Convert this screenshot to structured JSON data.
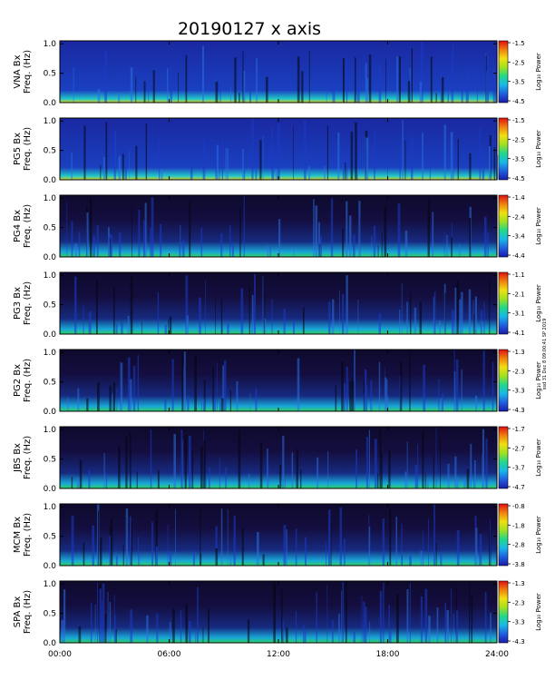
{
  "title": "20190127  x axis",
  "side_note": "ssd 31 Dec 8 09:00:41 SP 2019",
  "colors": {
    "background_low": "#0a0a1c",
    "colormap": [
      "#1a1aa8",
      "#1f5fe0",
      "#18b8e8",
      "#20d888",
      "#a0e020",
      "#f0e010",
      "#f08010",
      "#e01010"
    ]
  },
  "chart_data": {
    "type": "heatmap",
    "x_ticks": [
      "00:00",
      "06:00",
      "12:00",
      "18:00",
      "24:00"
    ],
    "xlim": [
      "00:00",
      "24:00"
    ],
    "y_ticks": [
      "0.0",
      "0.5",
      "1.0"
    ],
    "ylim": [
      0,
      1.05
    ],
    "colorbar_label": "Log₁₀ Power",
    "panels": [
      {
        "station_label": "VNA Bx",
        "ylabel": "Freq. (Hz)",
        "cbar_ticks": [
          "-1.5",
          "-2.5",
          "-3.5",
          "-4.5"
        ]
      },
      {
        "station_label": "PG5 Bx",
        "ylabel": "Freq. (Hz)",
        "cbar_ticks": [
          "-1.5",
          "-2.5",
          "-3.5",
          "-4.5"
        ]
      },
      {
        "station_label": "PG4 Bx",
        "ylabel": "Freq. (Hz)",
        "cbar_ticks": [
          "-1.4",
          "-2.4",
          "-3.4",
          "-4.4"
        ]
      },
      {
        "station_label": "PG3 Bx",
        "ylabel": "Freq. (Hz)",
        "cbar_ticks": [
          "-1.1",
          "-2.1",
          "-3.1",
          "-4.1"
        ]
      },
      {
        "station_label": "PG2 Bx",
        "ylabel": "Freq. (Hz)",
        "cbar_ticks": [
          "-1.3",
          "-2.3",
          "-3.3",
          "-4.3"
        ]
      },
      {
        "station_label": "JBS Bx",
        "ylabel": "Freq. (Hz)",
        "cbar_ticks": [
          "-1.7",
          "-2.7",
          "-3.7",
          "-4.7"
        ]
      },
      {
        "station_label": "MCM Bx",
        "ylabel": "Freq. (Hz)",
        "cbar_ticks": [
          "-0.8",
          "-1.8",
          "-2.8",
          "-3.8"
        ]
      },
      {
        "station_label": "SPA Bx",
        "ylabel": "Freq. (Hz)",
        "cbar_ticks": [
          "-1.3",
          "-2.3",
          "-3.3",
          "-4.3"
        ]
      }
    ]
  }
}
